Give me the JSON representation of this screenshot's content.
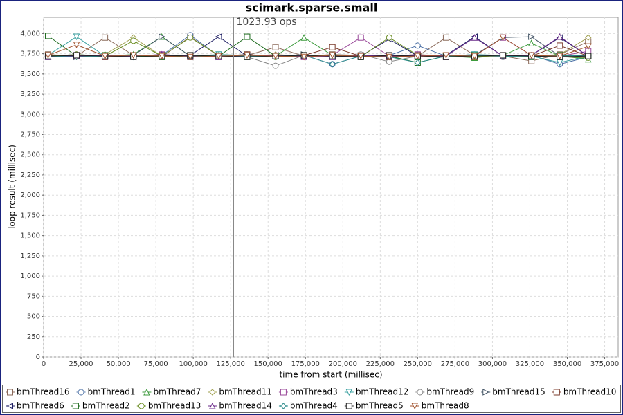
{
  "chart_data": {
    "type": "line",
    "title": "scimark.sparse.small",
    "x_label": "time from start (millisec)",
    "y_label": "loop result (millisec)",
    "xlim": [
      0,
      384000
    ],
    "ylim": [
      0,
      4200
    ],
    "xticks": [
      0,
      {
        "value": 25000,
        "label": "25,000"
      },
      {
        "value": 50000,
        "label": "50,000"
      },
      {
        "value": 75000,
        "label": "75,000"
      },
      {
        "value": 100000,
        "label": "100,000"
      },
      {
        "value": 125000,
        "label": "125,000"
      },
      {
        "value": 150000,
        "label": "150,000"
      },
      {
        "value": 175000,
        "label": "175,000"
      },
      {
        "value": 200000,
        "label": "200,000"
      },
      {
        "value": 225000,
        "label": "225,000"
      },
      {
        "value": 250000,
        "label": "250,000"
      },
      {
        "value": 275000,
        "label": "275,000"
      },
      {
        "value": 300000,
        "label": "300,000"
      },
      {
        "value": 325000,
        "label": "325,000"
      },
      {
        "value": 350000,
        "label": "350,000"
      },
      {
        "value": 375000,
        "label": "375,000"
      }
    ],
    "yticks": [
      0,
      250,
      500,
      750,
      {
        "value": 1000,
        "label": "1,000"
      },
      {
        "value": 1250,
        "label": "1,250"
      },
      {
        "value": 1500,
        "label": "1,500"
      },
      {
        "value": 1750,
        "label": "1,750"
      },
      {
        "value": 2000,
        "label": "2,000"
      },
      {
        "value": 2250,
        "label": "2,250"
      },
      {
        "value": 2500,
        "label": "2,500"
      },
      {
        "value": 2750,
        "label": "2,750"
      },
      {
        "value": 3000,
        "label": "3,000"
      },
      {
        "value": 3250,
        "label": "3,250"
      },
      {
        "value": 3500,
        "label": "3,500"
      },
      {
        "value": 3750,
        "label": "3,750"
      },
      {
        "value": 4000,
        "label": "4,000"
      }
    ],
    "grid": true,
    "annotation": {
      "x": 127000,
      "label": "1023.93 ops"
    },
    "x": [
      3000,
      22000,
      41000,
      60000,
      79000,
      98000,
      117000,
      136000,
      155000,
      174000,
      193000,
      212000,
      231000,
      250000,
      269000,
      288000,
      307000,
      326000,
      345000,
      364000
    ],
    "series": [
      {
        "name": "bmThread16",
        "color": "#8b6a5a",
        "marker": "square",
        "values": [
          3740,
          3720,
          3950,
          3730,
          3710,
          3960,
          3720,
          3730,
          3830,
          3720,
          3740,
          3730,
          3710,
          3720,
          3950,
          3730,
          3720,
          3660,
          3740,
          3900
        ]
      },
      {
        "name": "bmThread1",
        "color": "#4a6fa5",
        "marker": "circle",
        "values": [
          3720,
          3740,
          3720,
          3710,
          3730,
          3980,
          3720,
          3740,
          3710,
          3730,
          3620,
          3720,
          3730,
          3850,
          3720,
          3740,
          3710,
          3730,
          3620,
          3710
        ]
      },
      {
        "name": "bmThread7",
        "color": "#3c9a3c",
        "marker": "triangle-up",
        "values": [
          3710,
          3730,
          3720,
          3740,
          3960,
          3720,
          3730,
          3710,
          3720,
          3950,
          3730,
          3720,
          3710,
          3730,
          3720,
          3700,
          3730,
          3880,
          3720,
          3680
        ]
      },
      {
        "name": "bmThread11",
        "color": "#a0a050",
        "marker": "diamond",
        "values": [
          3730,
          3710,
          3740,
          3950,
          3720,
          3730,
          3710,
          3720,
          3740,
          3720,
          3730,
          3710,
          3720,
          3740,
          3720,
          3710,
          3730,
          3720,
          3740,
          3950
        ]
      },
      {
        "name": "bmThread3",
        "color": "#9a4a9a",
        "marker": "square",
        "values": [
          3720,
          3730,
          3710,
          3720,
          3740,
          3720,
          3710,
          3730,
          3720,
          3710,
          3730,
          3950,
          3720,
          3740,
          3710,
          3720,
          3950,
          3730,
          3720,
          3780
        ]
      },
      {
        "name": "bmThread12",
        "color": "#3aa0a0",
        "marker": "triangle-down",
        "values": [
          3730,
          3960,
          3720,
          3710,
          3730,
          3720,
          3740,
          3730,
          3710,
          3720,
          3730,
          3710,
          3720,
          3730,
          3720,
          3740,
          3730,
          3720,
          3640,
          3720
        ]
      },
      {
        "name": "bmThread9",
        "color": "#888888",
        "marker": "circle",
        "values": [
          3710,
          3720,
          3730,
          3720,
          3710,
          3730,
          3720,
          3710,
          3600,
          3730,
          3720,
          3740,
          3650,
          3720,
          3730,
          3720,
          3710,
          3730,
          3720,
          3710
        ]
      },
      {
        "name": "bmThread15",
        "color": "#445566",
        "marker": "triangle-right",
        "values": [
          3720,
          3710,
          3720,
          3730,
          3960,
          3720,
          3710,
          3730,
          3720,
          3740,
          3710,
          3720,
          3730,
          3720,
          3710,
          3730,
          3950,
          3960,
          3720,
          3730
        ]
      },
      {
        "name": "bmThread10",
        "color": "#7a3a2a",
        "marker": "square",
        "values": [
          3730,
          3720,
          3710,
          3720,
          3730,
          3710,
          3720,
          3740,
          3720,
          3730,
          3830,
          3720,
          3710,
          3730,
          3720,
          3710,
          3730,
          3720,
          3850,
          3720
        ]
      },
      {
        "name": "bmThread6",
        "color": "#222266",
        "marker": "triangle-left",
        "values": [
          3720,
          3730,
          3720,
          3710,
          3720,
          3730,
          3960,
          3720,
          3730,
          3720,
          3710,
          3720,
          3930,
          3720,
          3730,
          3960,
          3720,
          3730,
          3950,
          3720
        ]
      },
      {
        "name": "bmThread2",
        "color": "#1d6b1d",
        "marker": "square",
        "values": [
          3970,
          3720,
          3730,
          3720,
          3710,
          3730,
          3720,
          3960,
          3720,
          3730,
          3720,
          3710,
          3720,
          3640,
          3720,
          3730,
          3720,
          3710,
          3730,
          3720
        ]
      },
      {
        "name": "bmThread13",
        "color": "#6b8e23",
        "marker": "circle",
        "values": [
          3720,
          3740,
          3720,
          3910,
          3720,
          3950,
          3730,
          3720,
          3710,
          3730,
          3720,
          3710,
          3950,
          3730,
          3720,
          3710,
          3730,
          3720,
          3710,
          3700
        ]
      },
      {
        "name": "bmThread14",
        "color": "#6a2a8a",
        "marker": "triangle-up",
        "values": [
          3710,
          3720,
          3730,
          3720,
          3740,
          3720,
          3710,
          3720,
          3730,
          3720,
          3710,
          3730,
          3720,
          3730,
          3720,
          3950,
          3720,
          3730,
          3960,
          3720
        ]
      },
      {
        "name": "bmThread4",
        "color": "#2a8a8a",
        "marker": "diamond",
        "values": [
          3720,
          3710,
          3720,
          3730,
          3720,
          3710,
          3730,
          3720,
          3720,
          3730,
          3620,
          3720,
          3710,
          3640,
          3720,
          3730,
          3720,
          3710,
          3730,
          3720
        ]
      },
      {
        "name": "bmThread5",
        "color": "#222222",
        "marker": "square",
        "values": [
          3720,
          3730,
          3720,
          3710,
          3720,
          3730,
          3720,
          3710,
          3720,
          3730,
          3720,
          3710,
          3730,
          3720,
          3710,
          3720,
          3730,
          3720,
          3710,
          3720
        ]
      },
      {
        "name": "bmThread8",
        "color": "#a0522d",
        "marker": "triangle-down",
        "values": [
          3730,
          3860,
          3720,
          3730,
          3720,
          3710,
          3720,
          3730,
          3720,
          3710,
          3730,
          3720,
          3710,
          3720,
          3730,
          3720,
          3950,
          3730,
          3720,
          3840
        ]
      }
    ]
  }
}
